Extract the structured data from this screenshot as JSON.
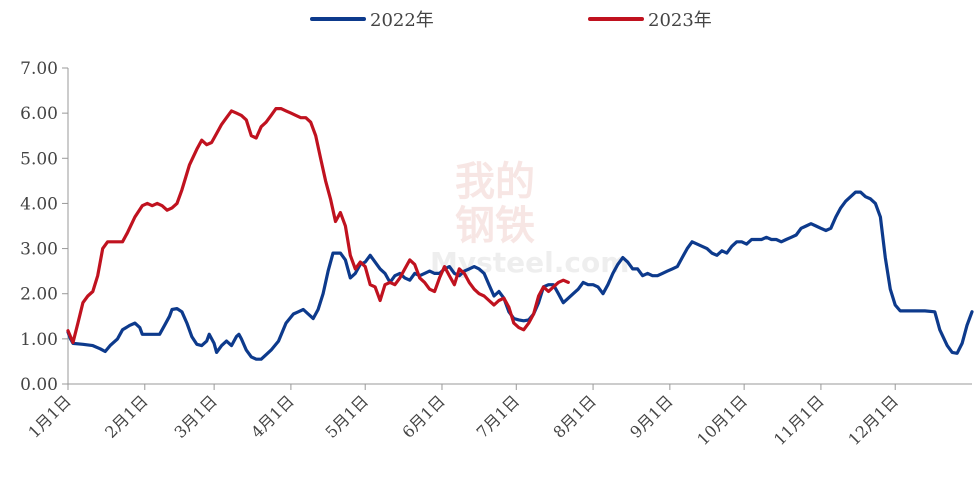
{
  "chart_data": {
    "type": "line",
    "title": "",
    "xlabel": "",
    "ylabel": "",
    "ylim": [
      0,
      7
    ],
    "yticks": [
      "0.00",
      "1.00",
      "2.00",
      "3.00",
      "4.00",
      "5.00",
      "6.00",
      "7.00"
    ],
    "xlim": [
      0,
      365
    ],
    "xticks": [
      {
        "day": 0,
        "label": "1月1日"
      },
      {
        "day": 31,
        "label": "2月1日"
      },
      {
        "day": 59,
        "label": "3月1日"
      },
      {
        "day": 90,
        "label": "4月1日"
      },
      {
        "day": 120,
        "label": "5月1日"
      },
      {
        "day": 151,
        "label": "6月1日"
      },
      {
        "day": 181,
        "label": "7月1日"
      },
      {
        "day": 212,
        "label": "8月1日"
      },
      {
        "day": 243,
        "label": "9月1日"
      },
      {
        "day": 273,
        "label": "10月1日"
      },
      {
        "day": 304,
        "label": "11月1日"
      },
      {
        "day": 334,
        "label": "12月1日"
      }
    ],
    "grid": false,
    "legend_position": "top-center",
    "series": [
      {
        "name": "2022年",
        "color": "#0d3a8c",
        "points": [
          [
            0,
            1.15
          ],
          [
            1,
            1.0
          ],
          [
            2,
            0.9
          ],
          [
            6,
            0.88
          ],
          [
            10,
            0.85
          ],
          [
            13,
            0.78
          ],
          [
            15,
            0.72
          ],
          [
            17,
            0.85
          ],
          [
            20,
            1.0
          ],
          [
            22,
            1.2
          ],
          [
            25,
            1.3
          ],
          [
            27,
            1.35
          ],
          [
            29,
            1.25
          ],
          [
            30,
            1.1
          ],
          [
            35,
            1.1
          ],
          [
            37,
            1.1
          ],
          [
            39,
            1.3
          ],
          [
            41,
            1.5
          ],
          [
            42,
            1.65
          ],
          [
            44,
            1.67
          ],
          [
            46,
            1.6
          ],
          [
            48,
            1.35
          ],
          [
            50,
            1.05
          ],
          [
            52,
            0.88
          ],
          [
            54,
            0.85
          ],
          [
            56,
            0.95
          ],
          [
            57,
            1.1
          ],
          [
            59,
            0.9
          ],
          [
            60,
            0.7
          ],
          [
            62,
            0.85
          ],
          [
            64,
            0.95
          ],
          [
            66,
            0.85
          ],
          [
            68,
            1.05
          ],
          [
            69,
            1.1
          ],
          [
            70,
            1.0
          ],
          [
            72,
            0.75
          ],
          [
            74,
            0.6
          ],
          [
            76,
            0.55
          ],
          [
            78,
            0.55
          ],
          [
            80,
            0.65
          ],
          [
            82,
            0.75
          ],
          [
            85,
            0.95
          ],
          [
            88,
            1.35
          ],
          [
            91,
            1.55
          ],
          [
            93,
            1.6
          ],
          [
            95,
            1.65
          ],
          [
            97,
            1.55
          ],
          [
            99,
            1.45
          ],
          [
            101,
            1.65
          ],
          [
            103,
            2.0
          ],
          [
            105,
            2.5
          ],
          [
            107,
            2.9
          ],
          [
            110,
            2.9
          ],
          [
            112,
            2.75
          ],
          [
            114,
            2.35
          ],
          [
            116,
            2.45
          ],
          [
            118,
            2.65
          ],
          [
            120,
            2.7
          ],
          [
            122,
            2.85
          ],
          [
            124,
            2.7
          ],
          [
            126,
            2.55
          ],
          [
            128,
            2.45
          ],
          [
            130,
            2.25
          ],
          [
            132,
            2.4
          ],
          [
            134,
            2.45
          ],
          [
            136,
            2.35
          ],
          [
            138,
            2.3
          ],
          [
            140,
            2.45
          ],
          [
            142,
            2.4
          ],
          [
            144,
            2.45
          ],
          [
            146,
            2.5
          ],
          [
            148,
            2.45
          ],
          [
            150,
            2.45
          ],
          [
            152,
            2.55
          ],
          [
            154,
            2.6
          ],
          [
            156,
            2.45
          ],
          [
            158,
            2.4
          ],
          [
            160,
            2.5
          ],
          [
            162,
            2.55
          ],
          [
            164,
            2.6
          ],
          [
            166,
            2.55
          ],
          [
            168,
            2.45
          ],
          [
            170,
            2.2
          ],
          [
            172,
            1.95
          ],
          [
            174,
            2.05
          ],
          [
            176,
            1.9
          ],
          [
            178,
            1.6
          ],
          [
            180,
            1.45
          ],
          [
            182,
            1.42
          ],
          [
            184,
            1.4
          ],
          [
            186,
            1.42
          ],
          [
            188,
            1.55
          ],
          [
            190,
            1.8
          ],
          [
            192,
            2.15
          ],
          [
            194,
            2.2
          ],
          [
            196,
            2.2
          ],
          [
            198,
            2.0
          ],
          [
            200,
            1.8
          ],
          [
            202,
            1.9
          ],
          [
            204,
            2.0
          ],
          [
            206,
            2.1
          ],
          [
            208,
            2.25
          ],
          [
            210,
            2.2
          ],
          [
            212,
            2.2
          ],
          [
            214,
            2.15
          ],
          [
            216,
            2.0
          ],
          [
            218,
            2.2
          ],
          [
            220,
            2.45
          ],
          [
            222,
            2.65
          ],
          [
            224,
            2.8
          ],
          [
            226,
            2.7
          ],
          [
            228,
            2.55
          ],
          [
            230,
            2.55
          ],
          [
            232,
            2.4
          ],
          [
            234,
            2.45
          ],
          [
            236,
            2.4
          ],
          [
            238,
            2.4
          ],
          [
            240,
            2.45
          ],
          [
            242,
            2.5
          ],
          [
            244,
            2.55
          ],
          [
            246,
            2.6
          ],
          [
            248,
            2.8
          ],
          [
            250,
            3.0
          ],
          [
            252,
            3.15
          ],
          [
            254,
            3.1
          ],
          [
            256,
            3.05
          ],
          [
            258,
            3.0
          ],
          [
            260,
            2.9
          ],
          [
            262,
            2.85
          ],
          [
            264,
            2.95
          ],
          [
            266,
            2.9
          ],
          [
            268,
            3.05
          ],
          [
            270,
            3.15
          ],
          [
            272,
            3.15
          ],
          [
            274,
            3.1
          ],
          [
            276,
            3.2
          ],
          [
            278,
            3.2
          ],
          [
            280,
            3.2
          ],
          [
            282,
            3.25
          ],
          [
            284,
            3.2
          ],
          [
            286,
            3.2
          ],
          [
            288,
            3.15
          ],
          [
            290,
            3.2
          ],
          [
            292,
            3.25
          ],
          [
            294,
            3.3
          ],
          [
            296,
            3.45
          ],
          [
            298,
            3.5
          ],
          [
            300,
            3.55
          ],
          [
            302,
            3.5
          ],
          [
            304,
            3.45
          ],
          [
            306,
            3.4
          ],
          [
            308,
            3.45
          ],
          [
            310,
            3.7
          ],
          [
            312,
            3.9
          ],
          [
            314,
            4.05
          ],
          [
            316,
            4.15
          ],
          [
            318,
            4.25
          ],
          [
            320,
            4.25
          ],
          [
            322,
            4.15
          ],
          [
            324,
            4.1
          ],
          [
            326,
            4.0
          ],
          [
            328,
            3.7
          ],
          [
            330,
            2.8
          ],
          [
            332,
            2.1
          ],
          [
            334,
            1.75
          ],
          [
            336,
            1.62
          ],
          [
            340,
            1.62
          ],
          [
            346,
            1.62
          ],
          [
            350,
            1.6
          ],
          [
            352,
            1.2
          ],
          [
            355,
            0.85
          ],
          [
            357,
            0.7
          ],
          [
            359,
            0.68
          ],
          [
            361,
            0.9
          ],
          [
            363,
            1.3
          ],
          [
            365,
            1.6
          ]
        ]
      },
      {
        "name": "2023年",
        "color": "#c0121f",
        "points": [
          [
            0,
            1.18
          ],
          [
            2,
            0.92
          ],
          [
            4,
            1.35
          ],
          [
            6,
            1.8
          ],
          [
            8,
            1.95
          ],
          [
            10,
            2.05
          ],
          [
            12,
            2.4
          ],
          [
            14,
            3.0
          ],
          [
            16,
            3.15
          ],
          [
            18,
            3.15
          ],
          [
            22,
            3.15
          ],
          [
            24,
            3.35
          ],
          [
            27,
            3.7
          ],
          [
            30,
            3.95
          ],
          [
            32,
            4.0
          ],
          [
            34,
            3.95
          ],
          [
            36,
            4.0
          ],
          [
            38,
            3.95
          ],
          [
            40,
            3.85
          ],
          [
            42,
            3.9
          ],
          [
            44,
            4.0
          ],
          [
            46,
            4.3
          ],
          [
            49,
            4.85
          ],
          [
            52,
            5.2
          ],
          [
            54,
            5.4
          ],
          [
            56,
            5.3
          ],
          [
            58,
            5.35
          ],
          [
            60,
            5.55
          ],
          [
            62,
            5.75
          ],
          [
            64,
            5.9
          ],
          [
            66,
            6.05
          ],
          [
            68,
            6.0
          ],
          [
            70,
            5.95
          ],
          [
            72,
            5.85
          ],
          [
            74,
            5.5
          ],
          [
            76,
            5.45
          ],
          [
            78,
            5.7
          ],
          [
            80,
            5.8
          ],
          [
            82,
            5.95
          ],
          [
            84,
            6.1
          ],
          [
            86,
            6.1
          ],
          [
            88,
            6.05
          ],
          [
            90,
            6.0
          ],
          [
            92,
            5.95
          ],
          [
            94,
            5.9
          ],
          [
            96,
            5.9
          ],
          [
            98,
            5.8
          ],
          [
            100,
            5.5
          ],
          [
            102,
            5.0
          ],
          [
            104,
            4.5
          ],
          [
            106,
            4.1
          ],
          [
            108,
            3.6
          ],
          [
            110,
            3.8
          ],
          [
            112,
            3.5
          ],
          [
            114,
            2.85
          ],
          [
            116,
            2.55
          ],
          [
            118,
            2.7
          ],
          [
            120,
            2.6
          ],
          [
            122,
            2.2
          ],
          [
            124,
            2.15
          ],
          [
            126,
            1.85
          ],
          [
            128,
            2.2
          ],
          [
            130,
            2.25
          ],
          [
            132,
            2.2
          ],
          [
            134,
            2.35
          ],
          [
            136,
            2.55
          ],
          [
            138,
            2.75
          ],
          [
            140,
            2.65
          ],
          [
            142,
            2.35
          ],
          [
            144,
            2.25
          ],
          [
            146,
            2.1
          ],
          [
            148,
            2.05
          ],
          [
            150,
            2.35
          ],
          [
            152,
            2.6
          ],
          [
            154,
            2.4
          ],
          [
            156,
            2.2
          ],
          [
            158,
            2.55
          ],
          [
            160,
            2.45
          ],
          [
            162,
            2.25
          ],
          [
            164,
            2.1
          ],
          [
            166,
            2.0
          ],
          [
            168,
            1.95
          ],
          [
            170,
            1.85
          ],
          [
            172,
            1.75
          ],
          [
            174,
            1.85
          ],
          [
            176,
            1.9
          ],
          [
            178,
            1.7
          ],
          [
            180,
            1.35
          ],
          [
            182,
            1.25
          ],
          [
            184,
            1.2
          ],
          [
            186,
            1.35
          ],
          [
            188,
            1.55
          ],
          [
            190,
            1.95
          ],
          [
            192,
            2.15
          ],
          [
            194,
            2.05
          ],
          [
            196,
            2.15
          ],
          [
            198,
            2.25
          ],
          [
            200,
            2.3
          ],
          [
            202,
            2.25
          ]
        ]
      }
    ]
  },
  "watermark": {
    "line1": "我的",
    "line2": "钢铁",
    "line3": "Mysteel.com"
  }
}
